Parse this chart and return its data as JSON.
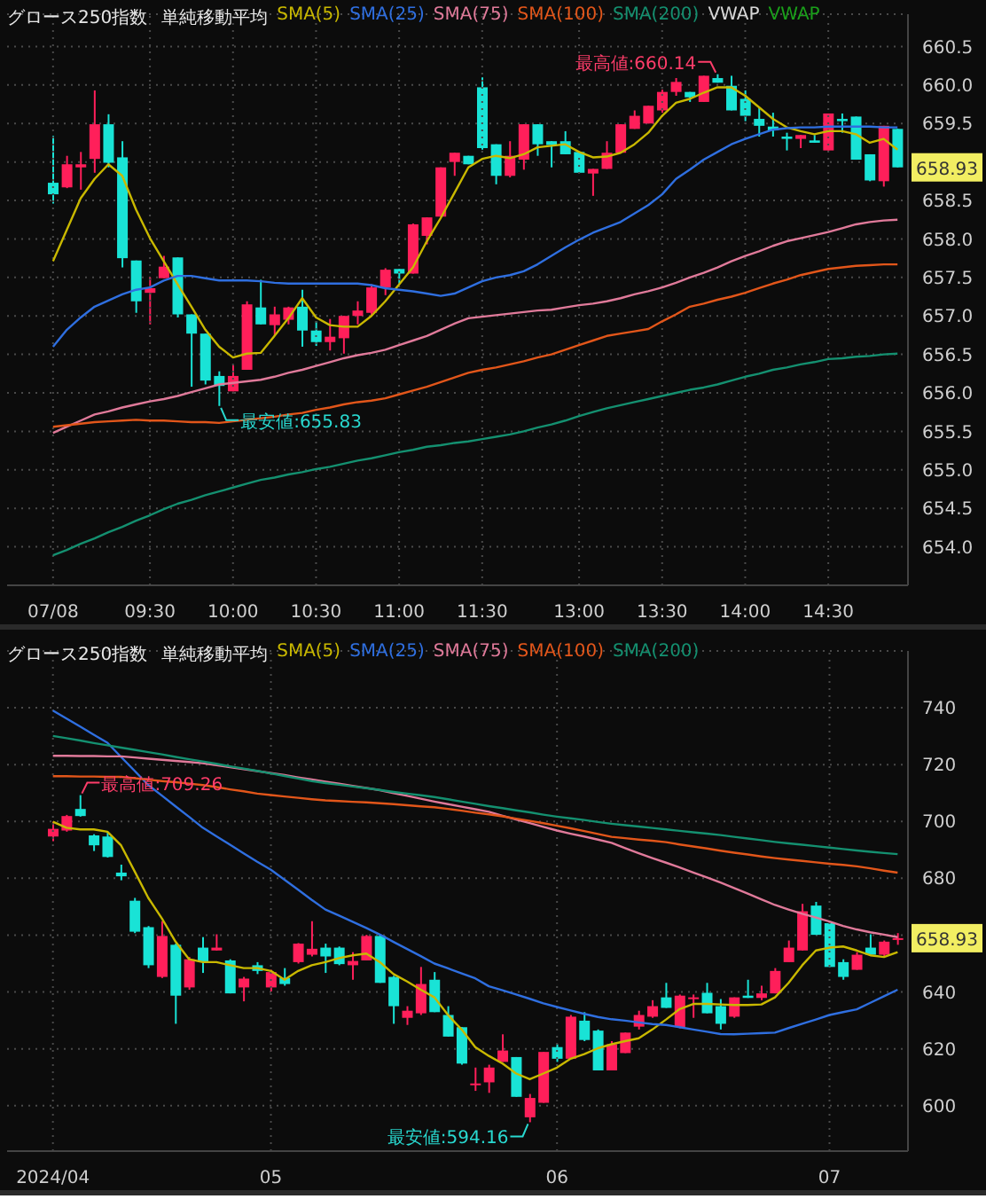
{
  "chart_data": [
    {
      "type": "candlestick",
      "title": "グロース250指数",
      "subtitle": "単純移動平均",
      "legend": "top left",
      "grid": true,
      "marker": "none",
      "categories": [
        "07/08",
        null,
        null,
        null,
        null,
        null,
        null,
        "09:30",
        null,
        null,
        null,
        null,
        null,
        "10:00",
        null,
        null,
        null,
        null,
        null,
        "10:30",
        null,
        null,
        null,
        null,
        null,
        "11:00",
        null,
        null,
        null,
        null,
        null,
        "11:30",
        null,
        null,
        null,
        null,
        null,
        null,
        "13:00",
        null,
        null,
        null,
        null,
        null,
        "13:30",
        null,
        null,
        null,
        null,
        null,
        "14:00",
        null,
        null,
        null,
        null,
        null,
        "14:30",
        null,
        null,
        null,
        null,
        null
      ],
      "ohlc": [
        [
          658.73,
          659.34,
          658.46,
          658.58
        ],
        [
          658.67,
          659.08,
          658.66,
          658.97
        ],
        [
          658.93,
          659.13,
          658.64,
          658.97
        ],
        [
          659.04,
          659.93,
          658.86,
          659.49
        ],
        [
          659.49,
          659.62,
          658.93,
          658.99
        ],
        [
          659.06,
          659.27,
          657.63,
          657.75
        ],
        [
          657.72,
          657.72,
          657.04,
          657.19
        ],
        [
          657.3,
          657.5,
          656.89,
          657.36
        ],
        [
          657.49,
          657.78,
          657.49,
          657.64
        ],
        [
          657.76,
          657.76,
          656.98,
          657.02
        ],
        [
          657.02,
          657.02,
          656.08,
          656.77
        ],
        [
          656.77,
          656.77,
          656.11,
          656.16
        ],
        [
          656.22,
          656.28,
          655.83,
          656.09
        ],
        [
          656.02,
          656.36,
          656.02,
          656.22
        ],
        [
          656.3,
          657.19,
          656.3,
          657.15
        ],
        [
          657.11,
          657.47,
          656.89,
          656.89
        ],
        [
          656.88,
          657.12,
          656.74,
          657.02
        ],
        [
          656.95,
          657.12,
          656.89,
          657.11
        ],
        [
          657.12,
          657.34,
          656.6,
          656.81
        ],
        [
          656.81,
          656.93,
          656.61,
          656.66
        ],
        [
          656.66,
          656.96,
          656.55,
          656.73
        ],
        [
          656.71,
          657.0,
          656.51,
          657.0
        ],
        [
          657.0,
          657.19,
          656.89,
          657.07
        ],
        [
          657.04,
          657.41,
          657.0,
          657.37
        ],
        [
          657.37,
          657.62,
          657.27,
          657.6
        ],
        [
          657.61,
          657.61,
          657.42,
          657.55
        ],
        [
          657.55,
          658.2,
          657.55,
          658.19
        ],
        [
          658.04,
          658.28,
          657.93,
          658.28
        ],
        [
          658.29,
          658.93,
          658.29,
          658.93
        ],
        [
          659.0,
          659.12,
          658.82,
          659.12
        ],
        [
          659.08,
          659.08,
          658.97,
          658.97
        ],
        [
          659.97,
          660.1,
          659.16,
          659.18
        ],
        [
          659.23,
          659.23,
          658.71,
          658.82
        ],
        [
          658.82,
          659.27,
          658.8,
          659.08
        ],
        [
          659.03,
          659.49,
          658.9,
          659.49
        ],
        [
          659.49,
          659.49,
          659.08,
          659.23
        ],
        [
          659.27,
          659.27,
          658.93,
          659.22
        ],
        [
          659.27,
          659.4,
          659.1,
          659.1
        ],
        [
          659.13,
          659.13,
          658.86,
          658.86
        ],
        [
          658.85,
          658.91,
          658.56,
          658.91
        ],
        [
          658.91,
          659.27,
          658.91,
          659.12
        ],
        [
          659.12,
          659.49,
          659.12,
          659.49
        ],
        [
          659.43,
          659.67,
          659.43,
          659.6
        ],
        [
          659.5,
          659.73,
          659.5,
          659.73
        ],
        [
          659.67,
          659.94,
          659.64,
          659.91
        ],
        [
          659.91,
          660.09,
          659.86,
          660.04
        ],
        [
          659.91,
          659.91,
          659.78,
          659.84
        ],
        [
          659.78,
          660.12,
          659.78,
          660.12
        ],
        [
          660.09,
          660.14,
          660.03,
          660.03
        ],
        [
          659.99,
          660.12,
          659.67,
          659.67
        ],
        [
          659.82,
          659.93,
          659.53,
          659.6
        ],
        [
          659.56,
          659.71,
          659.33,
          659.47
        ],
        [
          659.46,
          659.64,
          659.33,
          659.41
        ],
        [
          659.33,
          659.38,
          659.15,
          659.3
        ],
        [
          659.3,
          659.35,
          659.18,
          659.35
        ],
        [
          659.28,
          659.35,
          659.25,
          659.25
        ],
        [
          659.15,
          659.63,
          659.15,
          659.63
        ],
        [
          659.56,
          659.63,
          659.38,
          659.53
        ],
        [
          659.59,
          659.59,
          659.03,
          659.03
        ],
        [
          659.1,
          659.1,
          658.75,
          658.76
        ],
        [
          658.75,
          659.47,
          658.68,
          659.47
        ],
        [
          659.43,
          659.43,
          658.93,
          658.93
        ]
      ],
      "colors": [
        "#19e3d6",
        "#ff1f5a",
        "#ff1f5a",
        "#ff1f5a",
        "#19e3d6",
        "#19e3d6",
        "#19e3d6",
        "#ff1f5a",
        "#ff1f5a",
        "#19e3d6",
        "#19e3d6",
        "#19e3d6",
        "#19e3d6",
        "#ff1f5a",
        "#ff1f5a",
        "#19e3d6",
        "#ff1f5a",
        "#ff1f5a",
        "#19e3d6",
        "#19e3d6",
        "#ff1f5a",
        "#ff1f5a",
        "#ff1f5a",
        "#ff1f5a",
        "#ff1f5a",
        "#19e3d6",
        "#ff1f5a",
        "#ff1f5a",
        "#ff1f5a",
        "#ff1f5a",
        "#19e3d6",
        "#19e3d6",
        "#19e3d6",
        "#ff1f5a",
        "#ff1f5a",
        "#19e3d6",
        "#19e3d6",
        "#19e3d6",
        "#19e3d6",
        "#ff1f5a",
        "#ff1f5a",
        "#ff1f5a",
        "#ff1f5a",
        "#ff1f5a",
        "#ff1f5a",
        "#ff1f5a",
        "#19e3d6",
        "#ff1f5a",
        "#19e3d6",
        "#19e3d6",
        "#19e3d6",
        "#19e3d6",
        "#19e3d6",
        "#19e3d6",
        "#ff1f5a",
        "#19e3d6",
        "#ff1f5a",
        "#19e3d6",
        "#19e3d6",
        "#19e3d6",
        "#ff1f5a",
        "#19e3d6"
      ],
      "series": [
        {
          "name": "SMA(5)",
          "type": "line",
          "color": "#c9b800",
          "values": [
            657.71,
            658.12,
            658.53,
            658.78,
            658.97,
            658.82,
            658.38,
            658.01,
            657.71,
            657.41,
            657.12,
            656.82,
            656.6,
            656.46,
            656.51,
            656.52,
            656.74,
            656.97,
            657.23,
            656.98,
            656.88,
            656.86,
            656.86,
            657.0,
            657.19,
            657.41,
            657.63,
            657.97,
            658.27,
            658.6,
            658.93,
            659.04,
            659.08,
            659.05,
            659.1,
            659.19,
            659.21,
            659.23,
            659.13,
            659.06,
            659.07,
            659.12,
            659.23,
            659.38,
            659.6,
            659.77,
            659.82,
            659.9,
            659.97,
            659.97,
            659.86,
            659.71,
            659.56,
            659.45,
            659.4,
            659.36,
            659.4,
            659.4,
            659.36,
            659.25,
            659.3,
            659.16
          ]
        },
        {
          "name": "SMA(25)",
          "type": "line",
          "color": "#2f6fe0",
          "values": [
            656.6,
            656.82,
            656.98,
            657.12,
            657.2,
            657.28,
            657.34,
            657.37,
            657.46,
            657.52,
            657.52,
            657.49,
            657.46,
            657.46,
            657.46,
            657.45,
            657.43,
            657.42,
            657.42,
            657.42,
            657.42,
            657.42,
            657.42,
            657.4,
            657.36,
            657.34,
            657.32,
            657.29,
            657.26,
            657.29,
            657.37,
            657.45,
            657.5,
            657.53,
            657.58,
            657.67,
            657.78,
            657.89,
            657.99,
            658.08,
            658.15,
            658.22,
            658.33,
            658.44,
            658.58,
            658.78,
            658.9,
            659.03,
            659.13,
            659.23,
            659.3,
            659.36,
            659.42,
            659.44,
            659.45,
            659.45,
            659.46,
            659.46,
            659.46,
            659.46,
            659.45,
            659.45
          ]
        },
        {
          "name": "SMA(75)",
          "type": "line",
          "color": "#e07a9a",
          "values": [
            655.48,
            655.56,
            655.64,
            655.72,
            655.76,
            655.81,
            655.85,
            655.89,
            655.92,
            655.96,
            656.01,
            656.06,
            656.11,
            656.13,
            656.15,
            656.17,
            656.21,
            656.26,
            656.3,
            656.35,
            656.4,
            656.45,
            656.49,
            656.52,
            656.56,
            656.62,
            656.68,
            656.74,
            656.82,
            656.9,
            656.97,
            656.99,
            657.01,
            657.03,
            657.05,
            657.07,
            657.08,
            657.11,
            657.14,
            657.16,
            657.19,
            657.23,
            657.28,
            657.32,
            657.37,
            657.43,
            657.5,
            657.56,
            657.63,
            657.71,
            657.78,
            657.84,
            657.91,
            657.97,
            658.01,
            658.05,
            658.09,
            658.14,
            658.19,
            658.22,
            658.24,
            658.25
          ]
        },
        {
          "name": "SMA(100)",
          "type": "line",
          "color": "#e2561a",
          "values": [
            655.56,
            655.58,
            655.6,
            655.62,
            655.63,
            655.64,
            655.65,
            655.64,
            655.64,
            655.63,
            655.62,
            655.62,
            655.61,
            655.63,
            655.65,
            655.67,
            655.69,
            655.72,
            655.74,
            655.78,
            655.81,
            655.85,
            655.88,
            655.9,
            655.93,
            655.98,
            656.03,
            656.08,
            656.14,
            656.2,
            656.26,
            656.3,
            656.33,
            656.37,
            656.41,
            656.46,
            656.5,
            656.56,
            656.62,
            656.68,
            656.74,
            656.77,
            656.8,
            656.83,
            656.93,
            657.02,
            657.12,
            657.16,
            657.21,
            657.25,
            657.3,
            657.36,
            657.42,
            657.47,
            657.53,
            657.57,
            657.61,
            657.63,
            657.65,
            657.66,
            657.67,
            657.67
          ]
        },
        {
          "name": "SMA(200)",
          "type": "line",
          "color": "#149070",
          "values": [
            653.89,
            653.96,
            654.04,
            654.11,
            654.19,
            654.26,
            654.34,
            654.41,
            654.49,
            654.56,
            654.61,
            654.67,
            654.72,
            654.77,
            654.82,
            654.87,
            654.9,
            654.94,
            654.97,
            655.01,
            655.04,
            655.08,
            655.12,
            655.15,
            655.19,
            655.23,
            655.26,
            655.3,
            655.32,
            655.35,
            655.37,
            655.4,
            655.43,
            655.46,
            655.5,
            655.55,
            655.59,
            655.64,
            655.7,
            655.75,
            655.8,
            655.84,
            655.88,
            655.92,
            655.96,
            656.0,
            656.04,
            656.07,
            656.11,
            656.16,
            656.21,
            656.25,
            656.3,
            656.33,
            656.37,
            656.4,
            656.44,
            656.45,
            656.47,
            656.48,
            656.5,
            656.51
          ]
        },
        {
          "name": "VWAP",
          "type": "line",
          "color": "#d8d8d8",
          "values": [
            null,
            null,
            null,
            null,
            null,
            null,
            null,
            null,
            null,
            null,
            null,
            null,
            null,
            null,
            null,
            null,
            null,
            null,
            null,
            null,
            null,
            null,
            null,
            null,
            null,
            null,
            null,
            null,
            null,
            null,
            null,
            null,
            null,
            null,
            null,
            null,
            null,
            null,
            null,
            null,
            null,
            null,
            null,
            null,
            null,
            null,
            null,
            null,
            null,
            null,
            null,
            null,
            null,
            null,
            null,
            null,
            null,
            null,
            null,
            null,
            null,
            null
          ]
        },
        {
          "name": "VWAP",
          "type": "line",
          "color": "#1aa01a",
          "values": [
            null,
            null,
            null,
            null,
            null,
            null,
            null,
            null,
            null,
            null,
            null,
            null,
            null,
            null,
            null,
            null,
            null,
            null,
            null,
            null,
            null,
            null,
            null,
            null,
            null,
            null,
            null,
            null,
            null,
            null,
            null,
            null,
            null,
            null,
            null,
            null,
            null,
            null,
            null,
            null,
            null,
            null,
            null,
            null,
            null,
            null,
            null,
            null,
            null,
            null,
            null,
            null,
            null,
            null,
            null,
            null,
            null,
            null,
            null,
            null,
            null,
            null
          ]
        }
      ],
      "ylim": [
        653.5,
        660.92
      ],
      "yticks": [
        {
          "value": 654,
          "label": "654.0"
        },
        654.5,
        {
          "value": 655,
          "label": "655.0"
        },
        655.5,
        {
          "value": 656,
          "label": "656.0"
        },
        656.5,
        {
          "value": 657,
          "label": "657.0"
        },
        657.5,
        {
          "value": 658,
          "label": "658.0"
        },
        658.5,
        {
          "value": 659,
          "label": null
        },
        659.5,
        {
          "value": 660,
          "label": "660.0"
        },
        660.5
      ],
      "annotations": [
        "最高値:660.14",
        "最安値:655.83",
        "658.93"
      ]
    },
    {
      "type": "candlestick",
      "title": "グロース250指数",
      "subtitle": "単純移動平均",
      "legend": "top left",
      "grid": true,
      "marker": "none",
      "categories": [
        "2024/04",
        null,
        null,
        null,
        null,
        null,
        null,
        null,
        null,
        null,
        null,
        null,
        null,
        null,
        null,
        null,
        "05",
        null,
        null,
        null,
        null,
        null,
        null,
        null,
        null,
        null,
        null,
        null,
        null,
        null,
        null,
        null,
        null,
        null,
        null,
        null,
        null,
        "06",
        null,
        null,
        null,
        null,
        null,
        null,
        null,
        null,
        null,
        null,
        null,
        null,
        null,
        null,
        null,
        null,
        null,
        null,
        null,
        "07",
        null,
        null,
        null,
        null,
        null
      ],
      "ohlc": [
        [
          694.7,
          699.9,
          693.1,
          697.4
        ],
        [
          696.8,
          702.3,
          696.4,
          701.9
        ],
        [
          704.4,
          709.26,
          701.7,
          701.9
        ],
        [
          695.1,
          695.5,
          689.6,
          691.6
        ],
        [
          694.7,
          696.4,
          687.3,
          687.5
        ],
        [
          682.0,
          684.8,
          679.3,
          680.7
        ],
        [
          672.1,
          673.1,
          660.7,
          661.2
        ],
        [
          662.8,
          663.2,
          648.4,
          649.4
        ],
        [
          645.3,
          664.9,
          644.9,
          659.7
        ],
        [
          656.6,
          657.0,
          628.8,
          638.7
        ],
        [
          641.6,
          652.3,
          640.8,
          651.5
        ],
        [
          655.6,
          659.3,
          646.7,
          650.5
        ],
        [
          654.6,
          660.3,
          654.6,
          655.6
        ],
        [
          651.1,
          651.5,
          639.5,
          639.5
        ],
        [
          641.6,
          645.3,
          636.7,
          644.7
        ],
        [
          649.4,
          650.5,
          646.3,
          647.4
        ],
        [
          641.6,
          647.8,
          640.2,
          647.0
        ],
        [
          644.9,
          648.4,
          642.2,
          642.8
        ],
        [
          650.5,
          657.2,
          650.0,
          657.0
        ],
        [
          653.1,
          664.9,
          652.5,
          655.2
        ],
        [
          655.6,
          657.0,
          646.7,
          652.5
        ],
        [
          655.6,
          656.0,
          649.4,
          649.8
        ],
        [
          649.4,
          654.0,
          644.3,
          650.9
        ],
        [
          651.1,
          660.1,
          651.1,
          659.7
        ],
        [
          659.7,
          660.1,
          643.2,
          643.2
        ],
        [
          645.3,
          645.7,
          628.8,
          635.0
        ],
        [
          630.9,
          635.0,
          628.4,
          633.4
        ],
        [
          632.5,
          648.8,
          631.9,
          642.8
        ],
        [
          644.3,
          647.0,
          632.9,
          632.9
        ],
        [
          631.9,
          635.0,
          624.3,
          624.3
        ],
        [
          627.6,
          627.6,
          614.4,
          614.8
        ],
        [
          607.2,
          613.4,
          605.2,
          607.8
        ],
        [
          608.2,
          614.4,
          604.5,
          613.4
        ],
        [
          615.4,
          625.1,
          615.4,
          619.4
        ],
        [
          617.1,
          617.1,
          603.1,
          603.1
        ],
        [
          595.9,
          604.1,
          594.16,
          602.7
        ],
        [
          601.0,
          618.9,
          601.0,
          618.9
        ],
        [
          620.6,
          621.6,
          615.4,
          616.5
        ],
        [
          616.5,
          631.9,
          616.5,
          631.3
        ],
        [
          629.9,
          632.9,
          622.7,
          623.1
        ],
        [
          626.4,
          626.8,
          612.4,
          612.4
        ],
        [
          612.4,
          622.7,
          612.4,
          621.6
        ],
        [
          618.5,
          625.7,
          618.5,
          625.7
        ],
        [
          627.8,
          633.4,
          626.8,
          631.9
        ],
        [
          631.3,
          637.1,
          630.9,
          635.0
        ],
        [
          638.1,
          643.2,
          634.4,
          634.4
        ],
        [
          627.6,
          639.1,
          627.2,
          638.7
        ],
        [
          637.5,
          639.1,
          630.9,
          638.1
        ],
        [
          639.7,
          643.2,
          632.5,
          632.5
        ],
        [
          635.0,
          637.5,
          626.8,
          628.8
        ],
        [
          631.3,
          638.1,
          630.9,
          638.1
        ],
        [
          638.7,
          644.3,
          637.9,
          637.9
        ],
        [
          637.9,
          642.2,
          637.1,
          639.5
        ],
        [
          639.5,
          648.4,
          639.5,
          647.4
        ],
        [
          650.5,
          658.1,
          650.5,
          655.6
        ],
        [
          654.6,
          671.0,
          654.6,
          668.4
        ],
        [
          670.4,
          671.7,
          660.1,
          660.1
        ],
        [
          664.2,
          664.2,
          648.8,
          648.8
        ],
        [
          650.5,
          651.5,
          644.3,
          645.3
        ],
        [
          647.8,
          654.0,
          647.8,
          653.1
        ],
        [
          655.6,
          660.3,
          653.1,
          653.1
        ],
        [
          653.1,
          658.1,
          652.5,
          657.7
        ],
        [
          658.7,
          660.7,
          656.6,
          658.93
        ]
      ],
      "colors": [
        "#ff1f5a",
        "#ff1f5a",
        "#19e3d6",
        "#19e3d6",
        "#19e3d6",
        "#19e3d6",
        "#19e3d6",
        "#19e3d6",
        "#ff1f5a",
        "#19e3d6",
        "#ff1f5a",
        "#19e3d6",
        "#ff1f5a",
        "#19e3d6",
        "#ff1f5a",
        "#19e3d6",
        "#ff1f5a",
        "#19e3d6",
        "#ff1f5a",
        "#ff1f5a",
        "#19e3d6",
        "#19e3d6",
        "#ff1f5a",
        "#ff1f5a",
        "#19e3d6",
        "#19e3d6",
        "#ff1f5a",
        "#ff1f5a",
        "#19e3d6",
        "#19e3d6",
        "#19e3d6",
        "#ff1f5a",
        "#ff1f5a",
        "#ff1f5a",
        "#19e3d6",
        "#ff1f5a",
        "#ff1f5a",
        "#19e3d6",
        "#ff1f5a",
        "#19e3d6",
        "#19e3d6",
        "#ff1f5a",
        "#ff1f5a",
        "#ff1f5a",
        "#ff1f5a",
        "#19e3d6",
        "#ff1f5a",
        "#ff1f5a",
        "#19e3d6",
        "#19e3d6",
        "#ff1f5a",
        "#19e3d6",
        "#ff1f5a",
        "#ff1f5a",
        "#ff1f5a",
        "#ff1f5a",
        "#19e3d6",
        "#19e3d6",
        "#19e3d6",
        "#ff1f5a",
        "#19e3d6",
        "#ff1f5a",
        "#ff1f5a"
      ],
      "series": [
        {
          "name": "SMA(5)",
          "type": "line",
          "color": "#c9b800",
          "values": [
            699.9,
            697.8,
            697.2,
            697.2,
            696.4,
            691.6,
            682.4,
            673.1,
            665.9,
            657.7,
            651.5,
            650.5,
            650.5,
            649.4,
            648.4,
            648.4,
            647.4,
            644.3,
            647.4,
            649.4,
            650.5,
            651.9,
            652.9,
            653.5,
            650.5,
            646.3,
            643.7,
            640.8,
            638.1,
            631.9,
            626.8,
            620.6,
            617.5,
            614.8,
            611.3,
            609.3,
            611.3,
            613.4,
            616.5,
            618.1,
            620.2,
            621.6,
            622.7,
            623.7,
            626.8,
            630.3,
            634.0,
            635.8,
            635.8,
            635.6,
            635.4,
            635.4,
            635.6,
            638.1,
            643.2,
            649.4,
            654.6,
            655.6,
            656.0,
            654.6,
            652.9,
            652.3,
            654.0
          ]
        },
        {
          "name": "SMA(25)",
          "type": "line",
          "color": "#2f6fe0",
          "values": [
            739.0,
            736.2,
            733.4,
            730.5,
            727.7,
            722.7,
            717.8,
            712.8,
            709.1,
            705.3,
            701.6,
            697.8,
            694.8,
            691.8,
            688.8,
            685.8,
            683.0,
            679.5,
            676.0,
            672.4,
            669.0,
            666.9,
            664.7,
            662.5,
            660.2,
            657.6,
            655.1,
            652.6,
            650.0,
            648.3,
            646.5,
            644.8,
            642.0,
            640.6,
            639.1,
            637.6,
            636.0,
            634.7,
            633.5,
            632.3,
            631.2,
            630.4,
            629.9,
            629.3,
            628.7,
            628.4,
            627.6,
            626.8,
            626.0,
            625.2,
            625.1,
            625.3,
            625.5,
            625.7,
            627.3,
            628.8,
            630.3,
            631.9,
            632.9,
            633.9,
            636.2,
            638.5,
            640.8
          ]
        },
        {
          "name": "SMA(75)",
          "type": "line",
          "color": "#e07a9a",
          "values": [
            723.1,
            723.1,
            723.0,
            723.0,
            722.9,
            722.9,
            722.5,
            722.1,
            721.7,
            721.3,
            720.9,
            720.5,
            719.8,
            719.1,
            718.4,
            717.7,
            717.0,
            716.3,
            715.5,
            714.8,
            714.0,
            713.3,
            712.5,
            711.8,
            711.0,
            710.0,
            709.0,
            708.0,
            707.0,
            706.1,
            705.2,
            704.3,
            703.4,
            702.0,
            700.7,
            699.4,
            698.1,
            696.8,
            695.7,
            694.7,
            693.6,
            692.5,
            690.6,
            688.8,
            687.1,
            685.5,
            683.8,
            682.0,
            680.3,
            678.5,
            676.6,
            674.6,
            672.6,
            670.6,
            669.0,
            667.5,
            666.2,
            664.8,
            663.2,
            662.0,
            661.0,
            660.2,
            659.3
          ]
        },
        {
          "name": "SMA(100)",
          "type": "line",
          "color": "#e2561a",
          "values": [
            715.9,
            715.9,
            715.8,
            715.8,
            715.7,
            715.7,
            715.2,
            714.7,
            714.2,
            713.8,
            713.3,
            712.8,
            712.1,
            711.3,
            710.6,
            709.8,
            709.3,
            708.8,
            708.3,
            707.8,
            707.4,
            707.2,
            706.9,
            706.7,
            706.4,
            706.1,
            705.7,
            705.3,
            705.0,
            704.4,
            703.8,
            703.1,
            702.5,
            701.8,
            701.0,
            700.2,
            699.4,
            698.5,
            697.6,
            696.6,
            695.6,
            694.6,
            694.1,
            693.6,
            693.2,
            692.7,
            691.9,
            691.2,
            690.5,
            689.7,
            689.0,
            688.4,
            687.7,
            687.1,
            686.6,
            686.1,
            685.6,
            685.1,
            684.7,
            684.2,
            683.5,
            682.7,
            682.0
          ]
        },
        {
          "name": "SMA(200)",
          "type": "line",
          "color": "#149070",
          "values": [
            730.1,
            729.3,
            728.5,
            727.6,
            726.8,
            726.0,
            725.2,
            724.4,
            723.6,
            722.7,
            721.9,
            721.1,
            720.3,
            719.4,
            718.6,
            717.8,
            716.9,
            716.0,
            715.1,
            714.2,
            713.5,
            712.9,
            712.3,
            711.7,
            711.1,
            710.4,
            709.8,
            709.2,
            708.6,
            707.8,
            707.0,
            706.2,
            705.4,
            704.7,
            703.9,
            703.2,
            702.4,
            701.7,
            701.1,
            700.5,
            699.8,
            699.2,
            698.7,
            698.2,
            697.7,
            697.2,
            696.7,
            696.2,
            695.7,
            695.2,
            694.6,
            694.0,
            693.4,
            692.8,
            692.3,
            691.8,
            691.3,
            690.8,
            690.3,
            689.8,
            689.3,
            688.9,
            688.5
          ]
        }
      ],
      "ylim": [
        584,
        760
      ],
      "yticks": [
        600,
        620,
        640,
        {
          "value": 660,
          "label": null
        },
        680,
        700,
        720,
        740
      ],
      "annotations": [
        "最高値:709.26",
        "最安値:594.16",
        "658.93"
      ]
    }
  ]
}
